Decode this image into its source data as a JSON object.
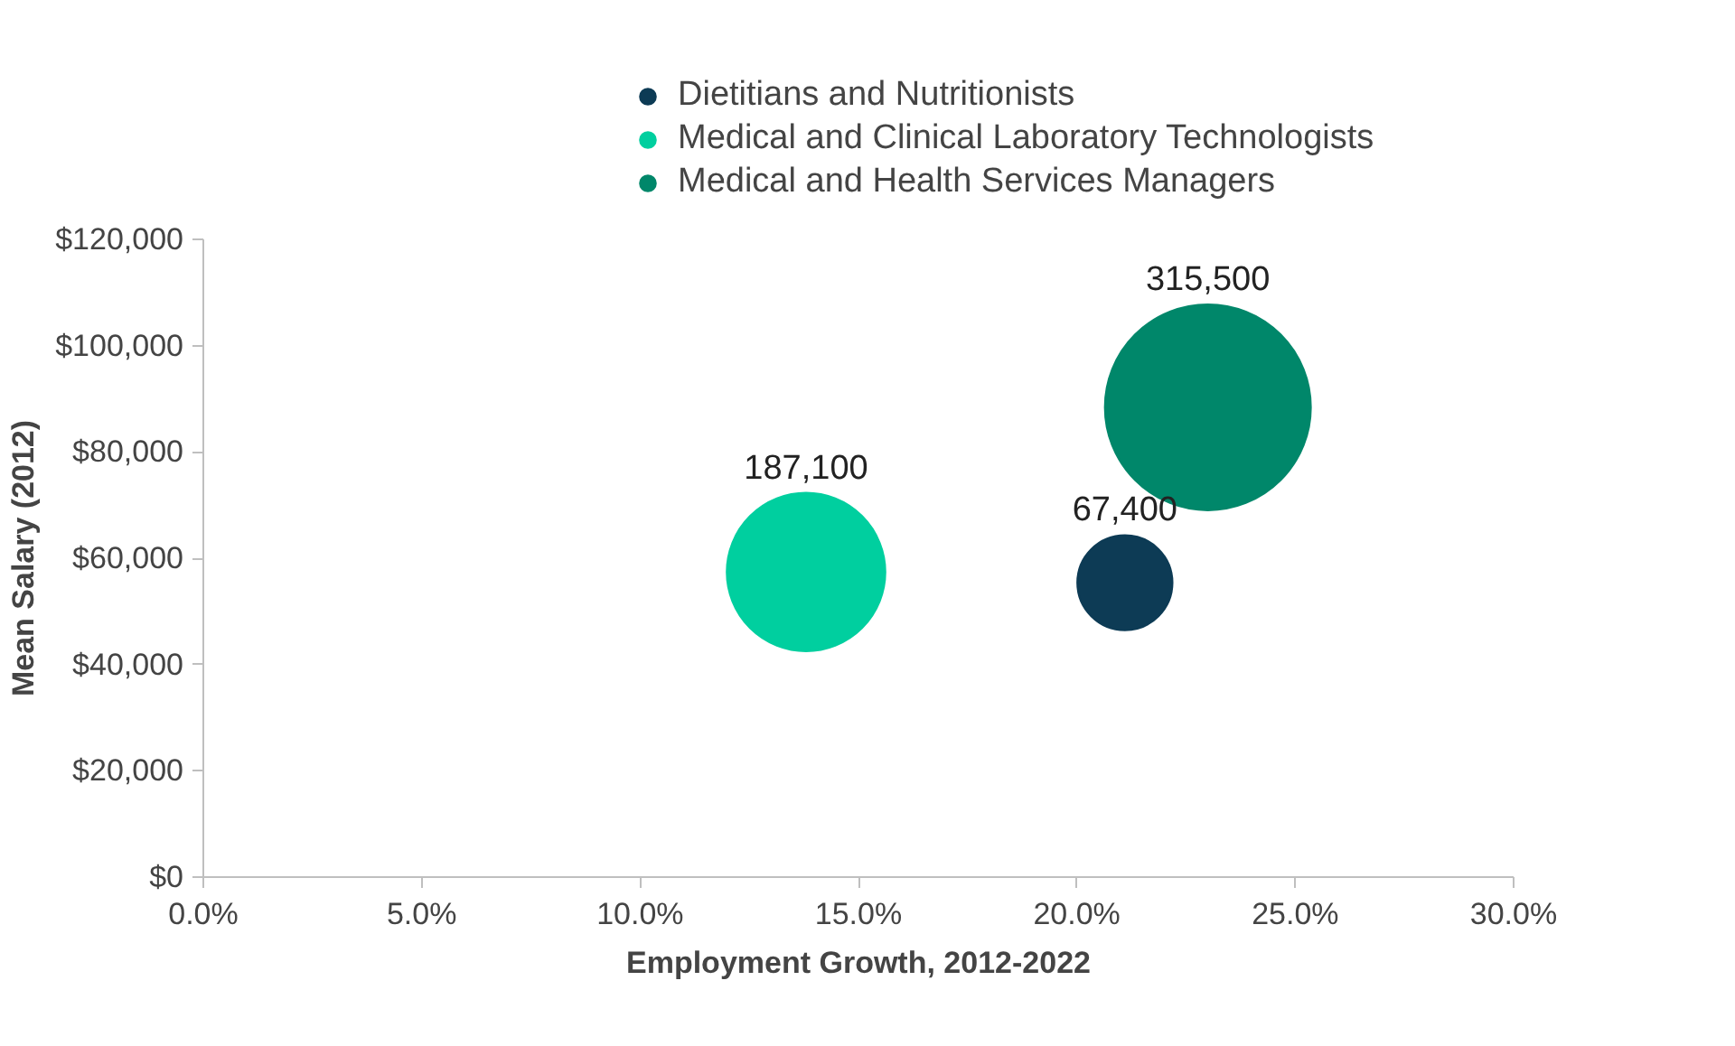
{
  "chart_data": {
    "type": "bubble",
    "xlabel": "Employment Growth, 2012-2022",
    "ylabel": "Mean Salary (2012)",
    "series": [
      {
        "name": "Dietitians and Nutritionists",
        "color": "#0d3b55",
        "x": [
          21.1
        ],
        "values": [
          55400
        ],
        "sizes": [
          67400
        ],
        "value_labels": [
          "67,400"
        ]
      },
      {
        "name": "Medical and Clinical Laboratory Technologists",
        "color": "#00cf9f",
        "x": [
          13.8
        ],
        "values": [
          57400
        ],
        "sizes": [
          187100
        ],
        "value_labels": [
          "187,100"
        ]
      },
      {
        "name": "Medical and Health Services Managers",
        "color": "#00876a",
        "x": [
          23.0
        ],
        "values": [
          88400
        ],
        "sizes": [
          315500
        ],
        "value_labels": [
          "315,500"
        ]
      }
    ],
    "xlim": [
      0,
      30
    ],
    "xticks": [
      {
        "value": 0,
        "label": "0.0%"
      },
      {
        "value": 5,
        "label": "5.0%"
      },
      {
        "value": 10,
        "label": "10.0%"
      },
      {
        "value": 15,
        "label": "15.0%"
      },
      {
        "value": 20,
        "label": "20.0%"
      },
      {
        "value": 25,
        "label": "25.0%"
      },
      {
        "value": 30,
        "label": "30.0%"
      }
    ],
    "ylim": [
      0,
      120000
    ],
    "yticks": [
      {
        "value": 0,
        "label": "$0"
      },
      {
        "value": 20000,
        "label": "$20,000"
      },
      {
        "value": 40000,
        "label": "$40,000"
      },
      {
        "value": 60000,
        "label": "$60,000"
      },
      {
        "value": 80000,
        "label": "$80,000"
      },
      {
        "value": 100000,
        "label": "$100,000"
      },
      {
        "value": 120000,
        "label": "$120,000"
      }
    ],
    "grid": false,
    "legend": "top"
  }
}
